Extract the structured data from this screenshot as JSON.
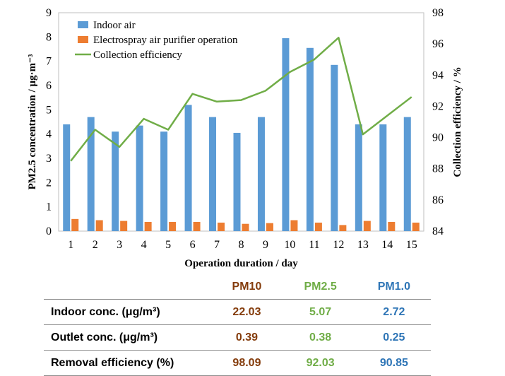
{
  "chart_data": {
    "type": "bar",
    "categories": [
      "1",
      "2",
      "3",
      "4",
      "5",
      "6",
      "7",
      "8",
      "9",
      "10",
      "11",
      "12",
      "13",
      "14",
      "15"
    ],
    "series": [
      {
        "name": "Indoor air",
        "kind": "bar",
        "axis": "left",
        "color": "#5b9bd5",
        "values": [
          4.4,
          4.7,
          4.1,
          4.35,
          4.1,
          5.2,
          4.7,
          4.05,
          4.7,
          7.95,
          7.55,
          6.85,
          4.4,
          4.4,
          4.7
        ]
      },
      {
        "name": "Electrospray air purifier operation",
        "kind": "bar",
        "axis": "left",
        "color": "#ed7d31",
        "values": [
          0.5,
          0.45,
          0.42,
          0.38,
          0.38,
          0.38,
          0.35,
          0.3,
          0.33,
          0.45,
          0.35,
          0.25,
          0.42,
          0.38,
          0.35
        ]
      },
      {
        "name": "Collection efficiency",
        "kind": "line",
        "axis": "right",
        "color": "#70ad47",
        "values": [
          88.5,
          90.5,
          89.4,
          91.2,
          90.5,
          92.8,
          92.3,
          92.4,
          93.0,
          94.2,
          95.0,
          96.4,
          90.2,
          91.4,
          92.6
        ]
      }
    ],
    "xlabel": "Operation duration / day",
    "ylabel": "PM2.5 concentration / μg·m⁻³",
    "y2label": "Collection efficiency / %",
    "ylim": [
      0,
      9
    ],
    "y2lim": [
      84,
      98
    ],
    "yticks": [
      "0",
      "1",
      "2",
      "3",
      "4",
      "5",
      "6",
      "7",
      "8",
      "9"
    ],
    "y2ticks": [
      "84",
      "86",
      "88",
      "90",
      "92",
      "94",
      "96",
      "98"
    ],
    "grid": false,
    "legend": "top-left"
  },
  "table": {
    "headers": [
      "PM10",
      "PM2.5",
      "PM1.0"
    ],
    "header_colors": [
      "#843c0c",
      "#70ad47",
      "#2e75b6"
    ],
    "rows": [
      {
        "label": "Indoor conc. (μg/m³)",
        "values": [
          "22.03",
          "5.07",
          "2.72"
        ]
      },
      {
        "label": "Outlet conc. (μg/m³)",
        "values": [
          "0.39",
          "0.38",
          "0.25"
        ]
      },
      {
        "label": "Removal efficiency (%)",
        "values": [
          "98.09",
          "92.03",
          "90.85"
        ]
      }
    ]
  }
}
